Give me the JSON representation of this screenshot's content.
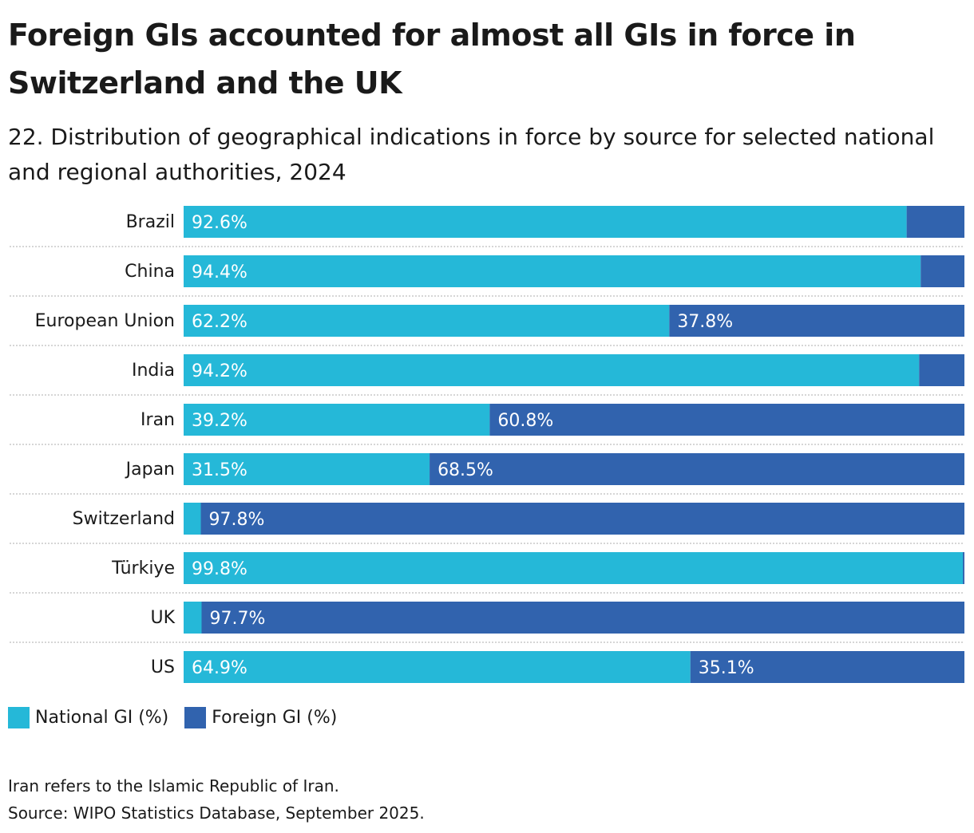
{
  "title": "Foreign GIs accounted for almost all GIs in force in Switzerland and the UK",
  "subtitle": "22. Distribution of geographical indications in force by source for selected national and regional authorities, 2024",
  "colors": {
    "national": "#25b8d8",
    "foreign": "#3163ae",
    "separator": "#c8c8c8"
  },
  "chart_data": {
    "type": "bar",
    "orientation": "horizontal",
    "stacked": true,
    "categories": [
      "Brazil",
      "China",
      "European Union",
      "India",
      "Iran",
      "Japan",
      "Switzerland",
      "Türkiye",
      "UK",
      "US"
    ],
    "series": [
      {
        "name": "National GI (%)",
        "values": [
          92.6,
          94.4,
          62.2,
          94.2,
          39.2,
          31.5,
          2.2,
          99.8,
          2.3,
          64.9
        ]
      },
      {
        "name": "Foreign GI (%)",
        "values": [
          7.4,
          5.6,
          37.8,
          5.8,
          60.8,
          68.5,
          97.8,
          0.2,
          97.7,
          35.1
        ]
      }
    ],
    "data_labels": {
      "national": [
        "92.6%",
        "94.4%",
        "62.2%",
        "94.2%",
        "39.2%",
        "31.5%",
        "",
        "99.8%",
        "",
        "64.9%"
      ],
      "foreign": [
        "",
        "",
        "37.8%",
        "",
        "60.8%",
        "68.5%",
        "97.8%",
        "",
        "97.7%",
        "35.1%"
      ]
    },
    "xlim": [
      0,
      100
    ],
    "legend_position": "bottom-left"
  },
  "legend": {
    "national": "National GI (%)",
    "foreign": "Foreign GI (%)"
  },
  "notes": [
    "Iran refers to the Islamic Republic of Iran.",
    "Source: WIPO Statistics Database, September 2025."
  ]
}
